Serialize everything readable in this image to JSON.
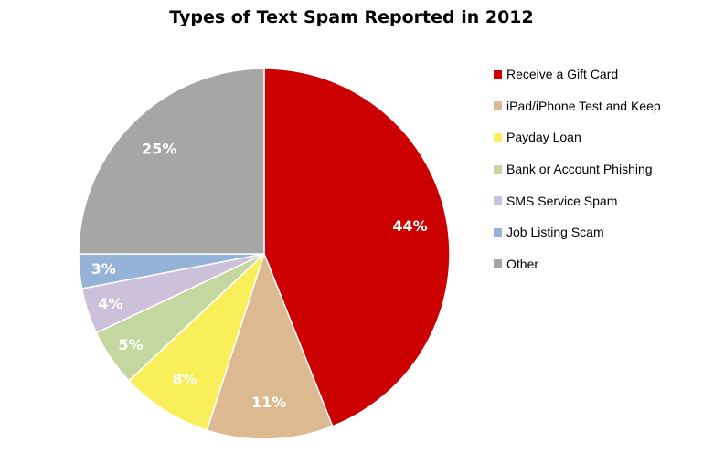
{
  "chart_data": {
    "type": "pie",
    "title": "Types of Text Spam Reported in 2012",
    "legend_position": "right",
    "slices": [
      {
        "label": "Receive a Gift Card",
        "value": 44,
        "display": "44%",
        "color": "#cc0000"
      },
      {
        "label": "iPad/iPhone Test and Keep",
        "value": 11,
        "display": "11%",
        "color": "#dcb991"
      },
      {
        "label": "Payday Loan",
        "value": 8,
        "display": "8%",
        "color": "#f8ef5a"
      },
      {
        "label": "Bank or Account Phishing",
        "value": 5,
        "display": "5%",
        "color": "#c4d7a0"
      },
      {
        "label": "SMS Service Spam",
        "value": 4,
        "display": "4%",
        "color": "#ccc0da"
      },
      {
        "label": "Job Listing Scam",
        "value": 3,
        "display": "3%",
        "color": "#95b3d7"
      },
      {
        "label": "Other",
        "value": 25,
        "display": "25%",
        "color": "#a6a6a6"
      }
    ]
  }
}
